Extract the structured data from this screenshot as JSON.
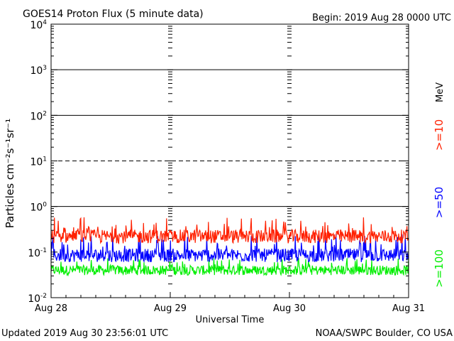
{
  "header": {
    "title": "GOES14 Proton Flux (5 minute data)",
    "begin": "Begin: 2019 Aug 28 0000 UTC"
  },
  "footer": {
    "updated": "Updated 2019 Aug 30 23:56:01 UTC",
    "credit": "NOAA/SWPC Boulder, CO USA"
  },
  "chart_data": {
    "type": "line",
    "title": "GOES14 Proton Flux (5 minute data)",
    "xlabel": "Universal Time",
    "ylabel": "Particles cm⁻²s⁻¹sr⁻¹",
    "y_scale": "log",
    "ylim": [
      0.01,
      10000
    ],
    "y_ticks": [
      {
        "value": 0.01,
        "base": "10",
        "exp": "-2"
      },
      {
        "value": 0.1,
        "base": "10",
        "exp": "-1"
      },
      {
        "value": 1,
        "base": "10",
        "exp": "0"
      },
      {
        "value": 10,
        "base": "10",
        "exp": "1"
      },
      {
        "value": 100,
        "base": "10",
        "exp": "2"
      },
      {
        "value": 1000,
        "base": "10",
        "exp": "3"
      },
      {
        "value": 10000,
        "base": "10",
        "exp": "4"
      }
    ],
    "x_ticks": [
      "Aug 28",
      "Aug 29",
      "Aug 30",
      "Aug 31"
    ],
    "xlim_days": [
      0,
      3
    ],
    "reference_lines": [
      {
        "value": 1000,
        "style": "solid"
      },
      {
        "value": 100,
        "style": "solid"
      },
      {
        "value": 10,
        "style": "dashed"
      },
      {
        "value": 1,
        "style": "solid"
      }
    ],
    "unit_label": "MeV",
    "series": [
      {
        "name": ">=10",
        "color": "#ff2000",
        "typical": 0.22,
        "range": [
          0.13,
          0.6
        ]
      },
      {
        "name": ">=50",
        "color": "#0000ff",
        "typical": 0.085,
        "range": [
          0.055,
          0.25
        ]
      },
      {
        "name": ">=100",
        "color": "#00ee00",
        "typical": 0.04,
        "range": [
          0.025,
          0.075
        ]
      }
    ]
  }
}
